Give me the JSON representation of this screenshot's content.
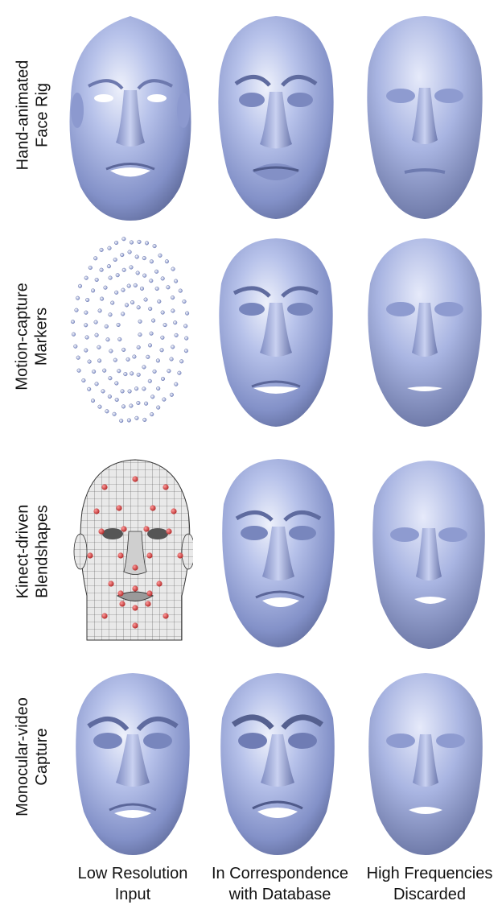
{
  "rows": [
    {
      "line1": "Hand-animated",
      "line2": "Face Rig"
    },
    {
      "line1": "Motion-capture",
      "line2": "Markers"
    },
    {
      "line1": "Kinect-driven",
      "line2": "Blendshapes"
    },
    {
      "line1": "Monocular-video",
      "line2": "Capture"
    }
  ],
  "columns": [
    {
      "line1": "Low Resolution",
      "line2": "Input"
    },
    {
      "line1": "In Correspondence",
      "line2": "with Database"
    },
    {
      "line1": "High Frequencies",
      "line2": "Discarded"
    }
  ],
  "colors": {
    "face_light": "#dfe4f7",
    "face_mid": "#98a6d8",
    "face_dark": "#56618f",
    "marker": "#b8c2ea",
    "rig_marker": "#d23b3b"
  }
}
